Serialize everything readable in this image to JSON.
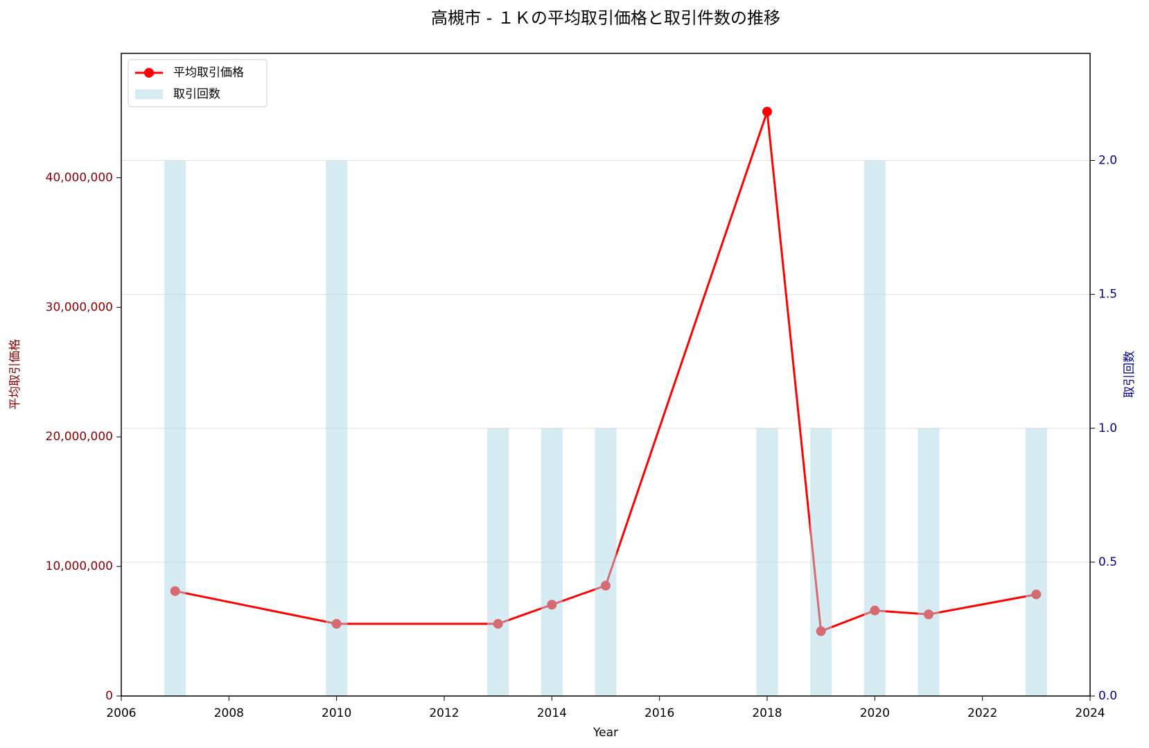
{
  "chart_data": {
    "type": "combo",
    "title": "高槻市 - １Ｋの平均取引価格と取引件数の推移",
    "xlabel": "Year",
    "ylabel": "平均取引価格",
    "y2label": "取引回数",
    "x": [
      2007,
      2010,
      2013,
      2014,
      2015,
      2018,
      2019,
      2020,
      2021,
      2023
    ],
    "series": [
      {
        "name": "平均取引価格",
        "type": "line",
        "color": "#ff0000",
        "axis": "y",
        "values": [
          8100000,
          5570000,
          5570000,
          7050000,
          8520000,
          45100000,
          5000000,
          6600000,
          6300000,
          7840000
        ]
      },
      {
        "name": "取引回数",
        "type": "bar",
        "color": "#add8e6",
        "axis": "y2",
        "values": [
          2,
          2,
          1,
          1,
          1,
          1,
          1,
          2,
          1,
          1
        ]
      }
    ],
    "xlim": [
      2006,
      2024
    ],
    "xticks": [
      2006,
      2008,
      2010,
      2012,
      2014,
      2016,
      2018,
      2020,
      2022,
      2024
    ],
    "ylim": [
      0,
      49600000
    ],
    "yticks": [
      0,
      {
        "value": 10000000,
        "label": "10,000,000"
      },
      {
        "value": 20000000,
        "label": "20,000,000"
      },
      {
        "value": 30000000,
        "label": "30,000,000"
      },
      {
        "value": 40000000,
        "label": "40,000,000"
      }
    ],
    "y2lim": [
      0,
      2.4
    ],
    "y2ticks": [
      {
        "value": 0,
        "label": "0.0"
      },
      {
        "value": 0.5,
        "label": "0.5"
      },
      {
        "value": 1,
        "label": "1.0"
      },
      {
        "value": 1.5,
        "label": "1.5"
      },
      {
        "value": 2,
        "label": "2.0"
      }
    ],
    "grid": true,
    "legend": "upper-left"
  }
}
